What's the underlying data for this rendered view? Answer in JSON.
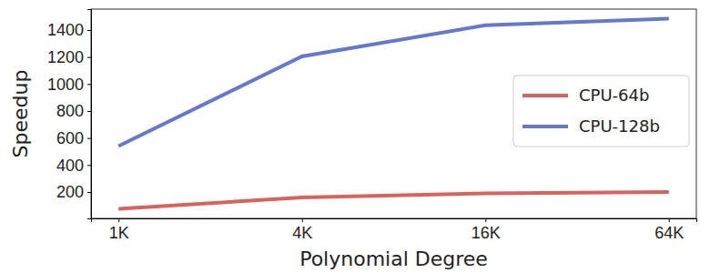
{
  "chart_data": {
    "type": "line",
    "x_label": "Polynomial Degree",
    "y_label": "Speedup",
    "categories": [
      "1K",
      "4K",
      "16K",
      "64K"
    ],
    "series": [
      {
        "name": "CPU-64b",
        "color": "#d9625c",
        "values": [
          75,
          160,
          190,
          200
        ]
      },
      {
        "name": "CPU-128b",
        "color": "#6479cc",
        "values": [
          540,
          1205,
          1435,
          1485
        ]
      }
    ],
    "ylim": [
      4.5,
      1555
    ],
    "yticks": [
      200,
      400,
      600,
      800,
      1000,
      1200,
      1400
    ],
    "grid": false,
    "legend": "right"
  }
}
